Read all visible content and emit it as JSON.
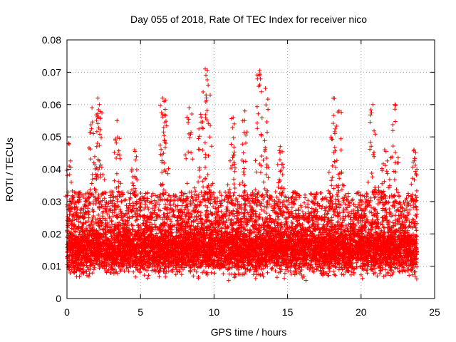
{
  "chart_data": {
    "type": "scatter",
    "title": "Day 055 of 2018, Rate Of TEC Index for receiver nico",
    "xlabel": "GPS time / hours",
    "ylabel": "ROTI / TECUs",
    "xlim": [
      0,
      25
    ],
    "ylim": [
      0,
      0.08
    ],
    "xticks": [
      "0",
      "5",
      "10",
      "15",
      "20",
      "25"
    ],
    "yticks": [
      "0",
      "0.01",
      "0.02",
      "0.03",
      "0.04",
      "0.05",
      "0.06",
      "0.07",
      "0.08"
    ],
    "grid": true,
    "marker": "plus",
    "color": "#ff0000",
    "x_data_range": [
      0,
      23.8
    ],
    "typical_band": [
      0.007,
      0.025
    ],
    "peaks": [
      {
        "x": 0.1,
        "y": 0.048
      },
      {
        "x": 1.7,
        "y": 0.059
      },
      {
        "x": 2.1,
        "y": 0.062
      },
      {
        "x": 2.2,
        "y": 0.06
      },
      {
        "x": 3.4,
        "y": 0.055
      },
      {
        "x": 4.6,
        "y": 0.046
      },
      {
        "x": 6.5,
        "y": 0.062
      },
      {
        "x": 6.6,
        "y": 0.061
      },
      {
        "x": 8.3,
        "y": 0.059
      },
      {
        "x": 9.1,
        "y": 0.057
      },
      {
        "x": 9.4,
        "y": 0.071
      },
      {
        "x": 9.6,
        "y": 0.066
      },
      {
        "x": 11.3,
        "y": 0.056
      },
      {
        "x": 12.1,
        "y": 0.058
      },
      {
        "x": 13.1,
        "y": 0.0705
      },
      {
        "x": 13.5,
        "y": 0.065
      },
      {
        "x": 14.5,
        "y": 0.047
      },
      {
        "x": 18.1,
        "y": 0.062
      },
      {
        "x": 18.5,
        "y": 0.058
      },
      {
        "x": 20.8,
        "y": 0.06
      },
      {
        "x": 21.6,
        "y": 0.046
      },
      {
        "x": 22.3,
        "y": 0.06
      },
      {
        "x": 23.6,
        "y": 0.046
      }
    ]
  }
}
